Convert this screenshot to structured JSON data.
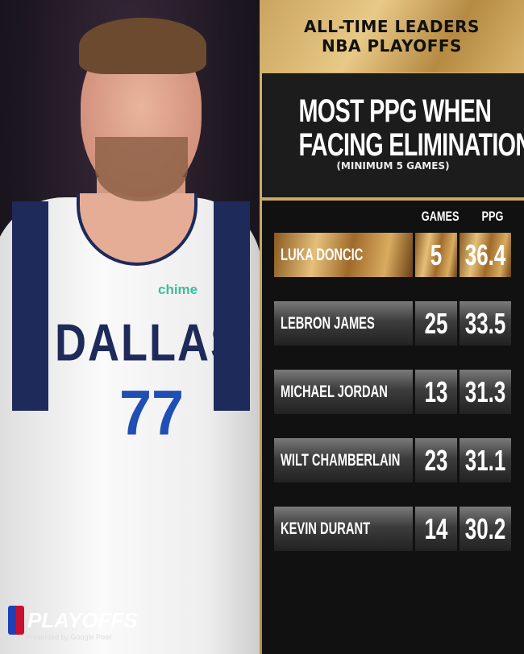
{
  "header": {
    "line1": "ALL-TIME LEADERS",
    "line2": "NBA PLAYOFFS"
  },
  "title": {
    "line1": "MOST PPG WHEN",
    "line2": "FACING ELIMINATION",
    "subtitle": "(MINIMUM 5 GAMES)"
  },
  "table": {
    "columns": [
      "GAMES",
      "PPG"
    ],
    "rows": [
      {
        "name": "LUKA DONCIC",
        "games": "5",
        "ppg": "36.4",
        "highlight": true
      },
      {
        "name": "LEBRON JAMES",
        "games": "25",
        "ppg": "33.5"
      },
      {
        "name": "MICHAEL JORDAN",
        "games": "13",
        "ppg": "31.3"
      },
      {
        "name": "WILT CHAMBERLAIN",
        "games": "23",
        "ppg": "31.1"
      },
      {
        "name": "KEVIN DURANT",
        "games": "14",
        "ppg": "30.2"
      }
    ]
  },
  "photo": {
    "jersey_text": "DALLAS",
    "jersey_number": "77",
    "sponsor": "chime"
  },
  "logo": {
    "text": "PLAYOFFS",
    "presented": "Presented by Google Pixel"
  },
  "colors": {
    "gold": "#d5b46e",
    "dark": "#111111",
    "navy": "#1d2a5a",
    "blue": "#1f4fb5"
  }
}
